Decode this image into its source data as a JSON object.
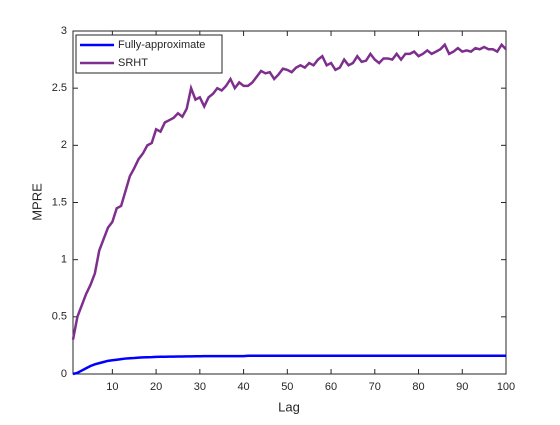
{
  "chart_data": {
    "type": "line",
    "x_label": "Lag",
    "y_label": "MPRE",
    "x": [
      1,
      2,
      3,
      4,
      5,
      6,
      7,
      8,
      9,
      10,
      11,
      12,
      13,
      14,
      15,
      16,
      17,
      18,
      19,
      20,
      21,
      22,
      23,
      24,
      25,
      26,
      27,
      28,
      29,
      30,
      31,
      32,
      33,
      34,
      35,
      36,
      37,
      38,
      39,
      40,
      41,
      42,
      43,
      44,
      45,
      46,
      47,
      48,
      49,
      50,
      51,
      52,
      53,
      54,
      55,
      56,
      57,
      58,
      59,
      60,
      61,
      62,
      63,
      64,
      65,
      66,
      67,
      68,
      69,
      70,
      71,
      72,
      73,
      74,
      75,
      76,
      77,
      78,
      79,
      80,
      81,
      82,
      83,
      84,
      85,
      86,
      87,
      88,
      89,
      90,
      91,
      92,
      93,
      94,
      95,
      96,
      97,
      98,
      99,
      100
    ],
    "series": [
      {
        "name": "Fully-approximate",
        "color": "#0000ff",
        "values": [
          0,
          0.01,
          0.03,
          0.05,
          0.07,
          0.085,
          0.095,
          0.105,
          0.115,
          0.12,
          0.125,
          0.13,
          0.135,
          0.138,
          0.14,
          0.143,
          0.145,
          0.147,
          0.148,
          0.15,
          0.151,
          0.151,
          0.152,
          0.152,
          0.153,
          0.153,
          0.154,
          0.154,
          0.155,
          0.155,
          0.156,
          0.156,
          0.156,
          0.156,
          0.156,
          0.156,
          0.156,
          0.156,
          0.156,
          0.156,
          0.16,
          0.16,
          0.16,
          0.16,
          0.16,
          0.16,
          0.16,
          0.16,
          0.16,
          0.16,
          0.16,
          0.16,
          0.16,
          0.16,
          0.16,
          0.16,
          0.16,
          0.16,
          0.16,
          0.16,
          0.16,
          0.16,
          0.16,
          0.16,
          0.16,
          0.16,
          0.16,
          0.16,
          0.16,
          0.16,
          0.16,
          0.16,
          0.16,
          0.16,
          0.16,
          0.16,
          0.16,
          0.16,
          0.16,
          0.16,
          0.16,
          0.16,
          0.16,
          0.16,
          0.16,
          0.16,
          0.16,
          0.16,
          0.16,
          0.16,
          0.16,
          0.16,
          0.16,
          0.16,
          0.16,
          0.16,
          0.16,
          0.16,
          0.16,
          0.16
        ]
      },
      {
        "name": "SRHT",
        "color": "#7e2f8e",
        "values": [
          0.3,
          0.5,
          0.6,
          0.7,
          0.78,
          0.88,
          1.08,
          1.18,
          1.28,
          1.33,
          1.45,
          1.47,
          1.6,
          1.73,
          1.8,
          1.88,
          1.93,
          2.0,
          2.02,
          2.14,
          2.12,
          2.2,
          2.22,
          2.24,
          2.28,
          2.25,
          2.32,
          2.5,
          2.4,
          2.42,
          2.34,
          2.42,
          2.45,
          2.5,
          2.48,
          2.52,
          2.58,
          2.5,
          2.55,
          2.52,
          2.52,
          2.55,
          2.6,
          2.65,
          2.63,
          2.64,
          2.58,
          2.62,
          2.67,
          2.66,
          2.64,
          2.68,
          2.7,
          2.68,
          2.72,
          2.7,
          2.75,
          2.78,
          2.7,
          2.72,
          2.66,
          2.68,
          2.75,
          2.7,
          2.72,
          2.78,
          2.73,
          2.74,
          2.8,
          2.75,
          2.72,
          2.76,
          2.76,
          2.75,
          2.8,
          2.75,
          2.8,
          2.8,
          2.82,
          2.78,
          2.8,
          2.83,
          2.8,
          2.82,
          2.84,
          2.88,
          2.8,
          2.82,
          2.85,
          2.82,
          2.83,
          2.82,
          2.85,
          2.84,
          2.86,
          2.84,
          2.84,
          2.82,
          2.88,
          2.84
        ]
      }
    ],
    "xlim": [
      1,
      100
    ],
    "ylim": [
      0,
      3
    ],
    "xticks": [
      10,
      20,
      30,
      40,
      50,
      60,
      70,
      80,
      90,
      100
    ],
    "yticks": [
      0,
      0.5,
      1,
      1.5,
      2,
      2.5,
      3
    ],
    "legend": "top-left"
  }
}
